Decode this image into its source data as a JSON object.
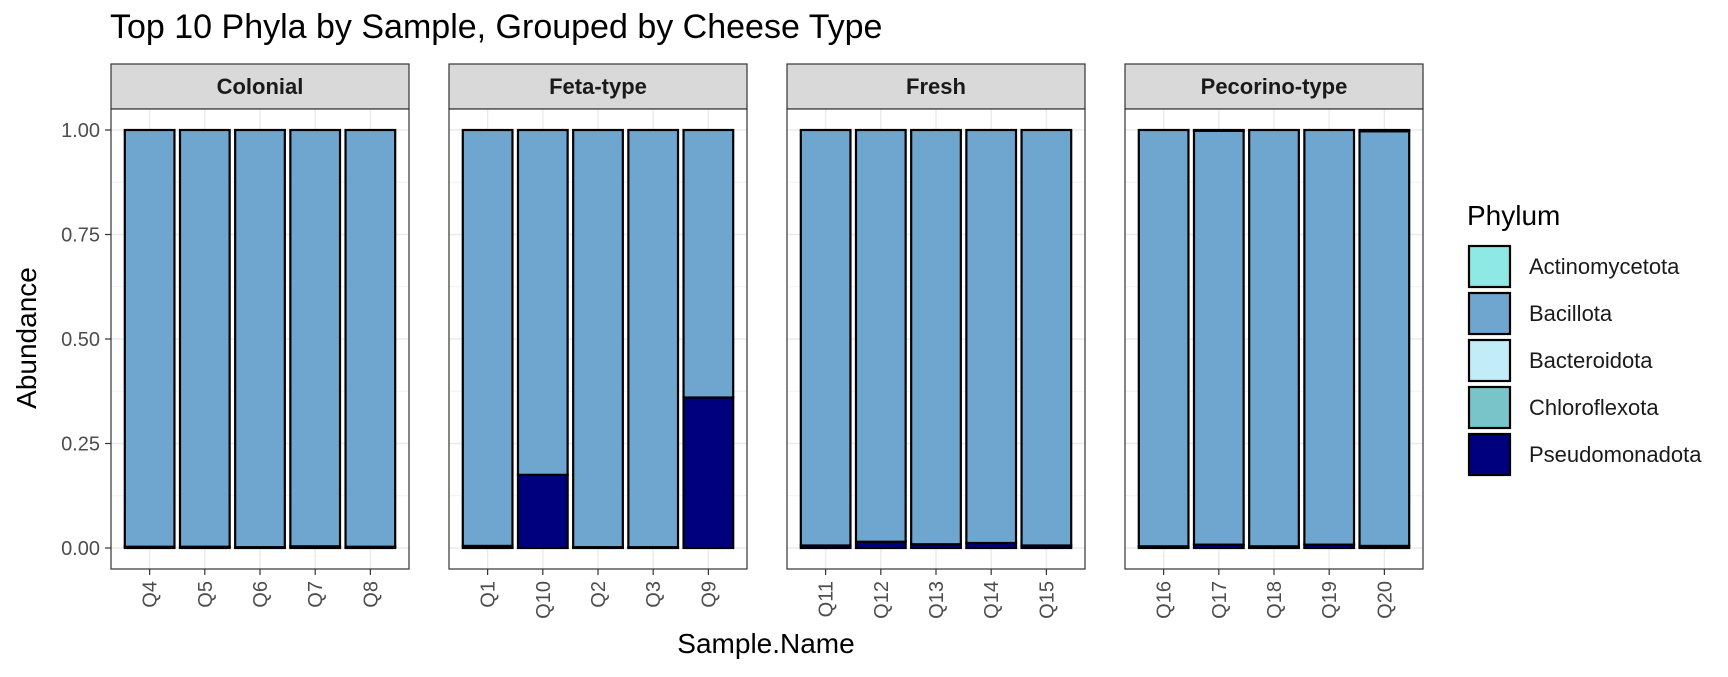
{
  "chart_data": {
    "type": "bar",
    "stacked": true,
    "title": "Top 10 Phyla by Sample, Grouped by Cheese Type",
    "xlabel": "Sample.Name",
    "ylabel": "Abundance",
    "ylim": [
      0,
      1
    ],
    "y_ticks": [
      "0.00",
      "0.25",
      "0.50",
      "0.75",
      "1.00"
    ],
    "grid": true,
    "legend": {
      "title": "Phylum",
      "position": "right",
      "entries": [
        {
          "name": "Actinomycetota",
          "color": "#8ee8e3"
        },
        {
          "name": "Bacillota",
          "color": "#6ea6cf"
        },
        {
          "name": "Bacteroidota",
          "color": "#c2ecf8"
        },
        {
          "name": "Chloroflexota",
          "color": "#78c4c8"
        },
        {
          "name": "Pseudomonadota",
          "color": "#00007f"
        }
      ]
    },
    "facets": [
      {
        "label": "Colonial",
        "categories": [
          "Q4",
          "Q5",
          "Q6",
          "Q7",
          "Q8"
        ],
        "series": [
          {
            "name": "Pseudomonadota",
            "values": [
              0.003,
              0.003,
              0.002,
              0.004,
              0.003
            ]
          },
          {
            "name": "Bacillota",
            "values": [
              0.997,
              0.997,
              0.998,
              0.996,
              0.997
            ]
          }
        ]
      },
      {
        "label": "Feta-type",
        "categories": [
          "Q1",
          "Q10",
          "Q2",
          "Q3",
          "Q9"
        ],
        "series": [
          {
            "name": "Pseudomonadota",
            "values": [
              0.005,
              0.175,
              0.002,
              0.002,
              0.36
            ]
          },
          {
            "name": "Bacillota",
            "values": [
              0.995,
              0.825,
              0.998,
              0.998,
              0.64
            ]
          }
        ]
      },
      {
        "label": "Fresh",
        "categories": [
          "Q11",
          "Q12",
          "Q13",
          "Q14",
          "Q15"
        ],
        "series": [
          {
            "name": "Pseudomonadota",
            "values": [
              0.006,
              0.015,
              0.009,
              0.012,
              0.006
            ]
          },
          {
            "name": "Bacillota",
            "values": [
              0.994,
              0.985,
              0.991,
              0.988,
              0.994
            ]
          }
        ]
      },
      {
        "label": "Pecorino-type",
        "categories": [
          "Q16",
          "Q17",
          "Q18",
          "Q19",
          "Q20"
        ],
        "series": [
          {
            "name": "Pseudomonadota",
            "values": [
              0.004,
              0.008,
              0.004,
              0.008,
              0.005
            ]
          },
          {
            "name": "Bacillota",
            "values": [
              0.996,
              0.99,
              0.996,
              0.992,
              0.992
            ]
          },
          {
            "name": "Chloroflexota",
            "values": [
              0.0,
              0.002,
              0.0,
              0.0,
              0.003
            ]
          }
        ]
      }
    ]
  }
}
